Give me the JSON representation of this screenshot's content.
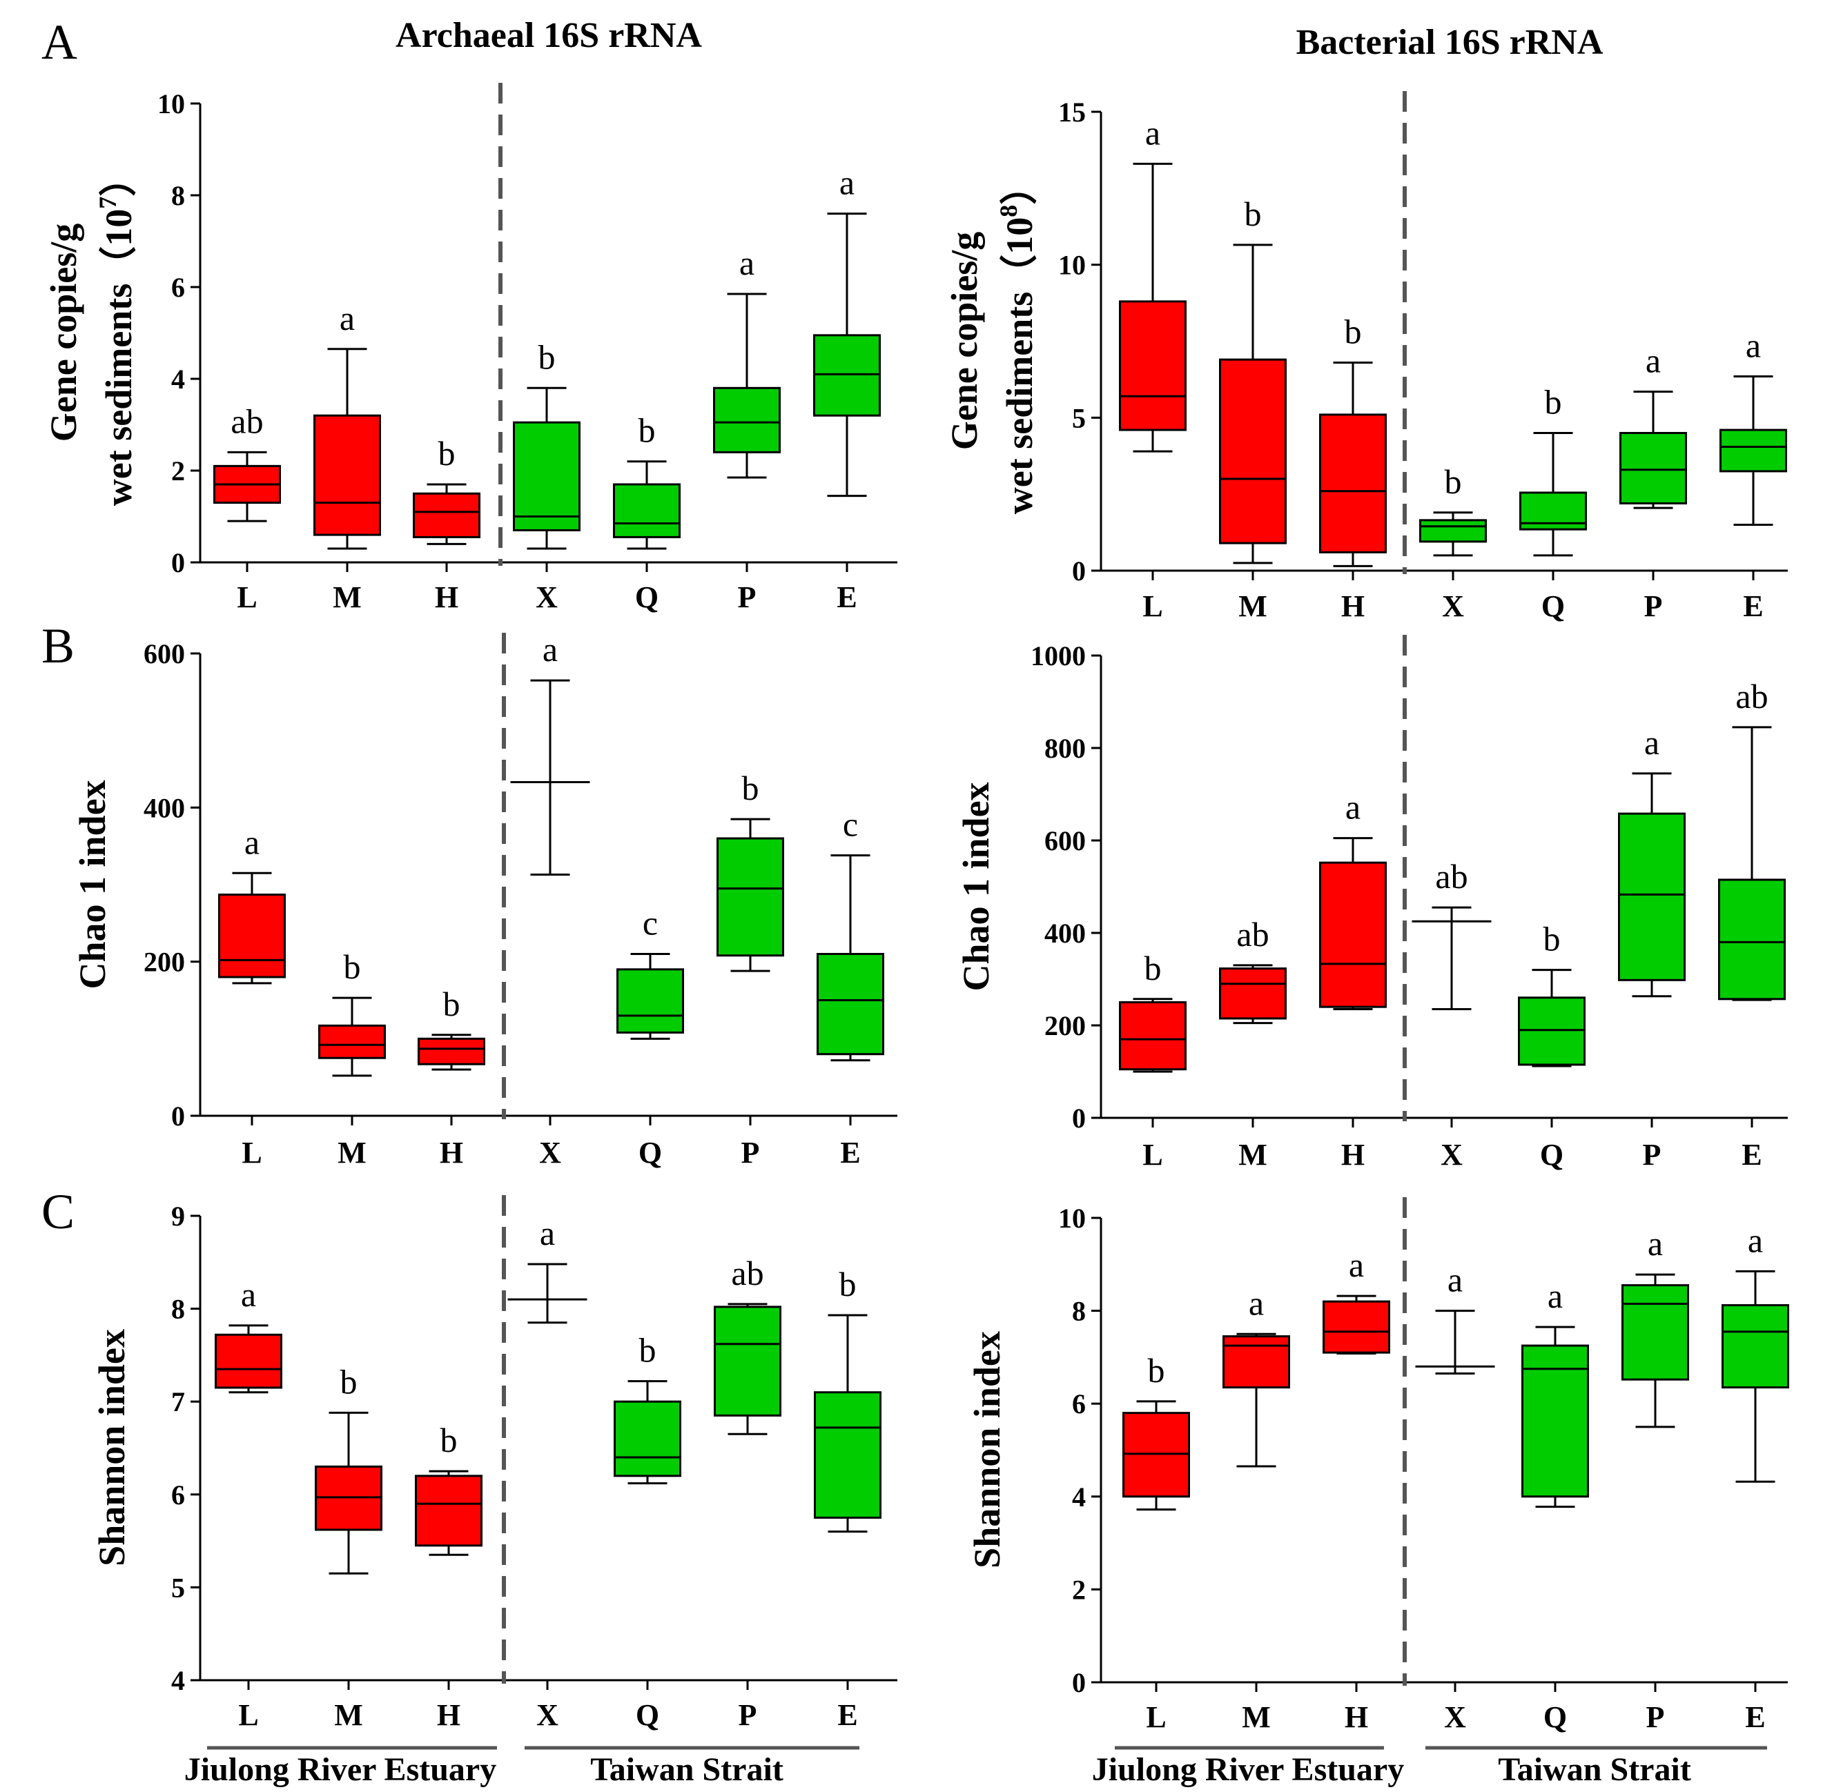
{
  "labels": {
    "A": "A",
    "B": "B",
    "C": "C"
  },
  "column_titles": {
    "archaea": "Archaeal 16S rRNA",
    "bacteria": "Bacterial 16S rRNA"
  },
  "regions": {
    "estuary": "Jiulong River Estuary",
    "strait": "Taiwan Strait"
  },
  "colors": {
    "estuary": "#ff0000",
    "strait": "#00cc00"
  },
  "chart_data": [
    {
      "id": "archaea_copies",
      "type": "boxplot",
      "ylabel_line1": "Gene copies/g",
      "ylabel_line2": "wet sediments（10",
      "ylabel_exp": "7",
      "ylabel_close": "）",
      "ylim": [
        0,
        10
      ],
      "yticks": [
        "0",
        "2",
        "4",
        "6",
        "8",
        "10"
      ],
      "categories": [
        "L",
        "M",
        "H",
        "X",
        "Q",
        "P",
        "E"
      ],
      "boxes": [
        {
          "cat": "L",
          "group": "estuary",
          "min": 0.9,
          "q1": 1.3,
          "median": 1.7,
          "q3": 2.1,
          "max": 2.4,
          "letter": "ab"
        },
        {
          "cat": "M",
          "group": "estuary",
          "min": 0.3,
          "q1": 0.6,
          "median": 1.3,
          "q3": 3.2,
          "max": 4.65,
          "letter": "a"
        },
        {
          "cat": "H",
          "group": "estuary",
          "min": 0.4,
          "q1": 0.55,
          "median": 1.1,
          "q3": 1.5,
          "max": 1.7,
          "letter": "b"
        },
        {
          "cat": "X",
          "group": "strait",
          "min": 0.3,
          "q1": 0.7,
          "median": 1.0,
          "q3": 3.05,
          "max": 3.8,
          "letter": "b"
        },
        {
          "cat": "Q",
          "group": "strait",
          "min": 0.3,
          "q1": 0.55,
          "median": 0.85,
          "q3": 1.7,
          "max": 2.2,
          "letter": "b"
        },
        {
          "cat": "P",
          "group": "strait",
          "min": 1.85,
          "q1": 2.4,
          "median": 3.05,
          "q3": 3.8,
          "max": 5.85,
          "letter": "a"
        },
        {
          "cat": "E",
          "group": "strait",
          "min": 1.45,
          "q1": 3.2,
          "median": 4.1,
          "q3": 4.95,
          "max": 7.6,
          "letter": "a"
        }
      ]
    },
    {
      "id": "bacteria_copies",
      "type": "boxplot",
      "ylabel_line1": "Gene copies/g",
      "ylabel_line2": "wet sediments（10",
      "ylabel_exp": "8",
      "ylabel_close": "）",
      "ylim": [
        0,
        15
      ],
      "yticks": [
        "0",
        "5",
        "10",
        "15"
      ],
      "categories": [
        "L",
        "M",
        "H",
        "X",
        "Q",
        "P",
        "E"
      ],
      "boxes": [
        {
          "cat": "L",
          "group": "estuary",
          "min": 3.9,
          "q1": 4.6,
          "median": 5.7,
          "q3": 8.8,
          "max": 13.3,
          "letter": "a"
        },
        {
          "cat": "M",
          "group": "estuary",
          "min": 0.25,
          "q1": 0.9,
          "median": 3.0,
          "q3": 6.9,
          "max": 10.65,
          "letter": "b"
        },
        {
          "cat": "H",
          "group": "estuary",
          "min": 0.15,
          "q1": 0.6,
          "median": 2.6,
          "q3": 5.1,
          "max": 6.8,
          "letter": "b"
        },
        {
          "cat": "X",
          "group": "strait",
          "min": 0.5,
          "q1": 0.95,
          "median": 1.45,
          "q3": 1.65,
          "max": 1.9,
          "letter": "b"
        },
        {
          "cat": "Q",
          "group": "strait",
          "min": 0.5,
          "q1": 1.35,
          "median": 1.55,
          "q3": 2.55,
          "max": 4.5,
          "letter": "b"
        },
        {
          "cat": "P",
          "group": "strait",
          "min": 2.05,
          "q1": 2.2,
          "median": 3.3,
          "q3": 4.5,
          "max": 5.85,
          "letter": "a"
        },
        {
          "cat": "E",
          "group": "strait",
          "min": 1.5,
          "q1": 3.25,
          "median": 4.05,
          "q3": 4.6,
          "max": 6.35,
          "letter": "a"
        }
      ]
    },
    {
      "id": "archaea_chao1",
      "type": "boxplot",
      "ylabel": "Chao 1 index",
      "ylim": [
        0,
        600
      ],
      "yticks": [
        "0",
        "200",
        "400",
        "600"
      ],
      "categories": [
        "L",
        "M",
        "H",
        "X",
        "Q",
        "P",
        "E"
      ],
      "boxes": [
        {
          "cat": "L",
          "group": "estuary",
          "min": 172,
          "q1": 180,
          "median": 202,
          "q3": 287,
          "max": 315,
          "letter": "a"
        },
        {
          "cat": "M",
          "group": "estuary",
          "min": 52,
          "q1": 75,
          "median": 92,
          "q3": 117,
          "max": 153,
          "letter": "b"
        },
        {
          "cat": "H",
          "group": "estuary",
          "min": 60,
          "q1": 67,
          "median": 87,
          "q3": 100,
          "max": 105,
          "letter": "b"
        },
        {
          "cat": "X",
          "group": "strait",
          "min": 313,
          "median": 433,
          "max": 565,
          "nobox": true,
          "letter": "a"
        },
        {
          "cat": "Q",
          "group": "strait",
          "min": 100,
          "q1": 108,
          "median": 130,
          "q3": 190,
          "max": 210,
          "letter": "c"
        },
        {
          "cat": "P",
          "group": "strait",
          "min": 188,
          "q1": 208,
          "median": 295,
          "q3": 360,
          "max": 385,
          "letter": "b"
        },
        {
          "cat": "E",
          "group": "strait",
          "min": 72,
          "q1": 80,
          "median": 150,
          "q3": 210,
          "max": 338,
          "letter": "c"
        }
      ]
    },
    {
      "id": "bacteria_chao1",
      "type": "boxplot",
      "ylabel": "Chao 1 index",
      "ylim": [
        0,
        1000
      ],
      "yticks": [
        "0",
        "200",
        "400",
        "600",
        "800",
        "1000"
      ],
      "categories": [
        "L",
        "M",
        "H",
        "X",
        "Q",
        "P",
        "E"
      ],
      "boxes": [
        {
          "cat": "L",
          "group": "estuary",
          "min": 100,
          "q1": 105,
          "median": 170,
          "q3": 250,
          "max": 257,
          "letter": "b"
        },
        {
          "cat": "M",
          "group": "estuary",
          "min": 205,
          "q1": 215,
          "median": 290,
          "q3": 323,
          "max": 330,
          "letter": "ab"
        },
        {
          "cat": "H",
          "group": "estuary",
          "min": 235,
          "q1": 240,
          "median": 333,
          "q3": 552,
          "max": 605,
          "letter": "a"
        },
        {
          "cat": "X",
          "group": "strait",
          "min": 235,
          "median": 425,
          "max": 455,
          "nobox": true,
          "letter": "ab"
        },
        {
          "cat": "Q",
          "group": "strait",
          "min": 112,
          "q1": 115,
          "median": 190,
          "q3": 260,
          "max": 320,
          "letter": "b"
        },
        {
          "cat": "P",
          "group": "strait",
          "min": 263,
          "q1": 298,
          "median": 483,
          "q3": 658,
          "max": 745,
          "letter": "a"
        },
        {
          "cat": "E",
          "group": "strait",
          "min": 255,
          "q1": 257,
          "median": 380,
          "q3": 515,
          "max": 845,
          "letter": "ab"
        }
      ]
    },
    {
      "id": "archaea_shannon",
      "type": "boxplot",
      "ylabel": "Shannon index",
      "ylim": [
        4,
        9
      ],
      "yticks": [
        "4",
        "5",
        "6",
        "7",
        "8",
        "9"
      ],
      "categories": [
        "L",
        "M",
        "H",
        "X",
        "Q",
        "P",
        "E"
      ],
      "boxes": [
        {
          "cat": "L",
          "group": "estuary",
          "min": 7.1,
          "q1": 7.15,
          "median": 7.35,
          "q3": 7.72,
          "max": 7.82,
          "letter": "a"
        },
        {
          "cat": "M",
          "group": "estuary",
          "min": 5.15,
          "q1": 5.62,
          "median": 5.97,
          "q3": 6.3,
          "max": 6.88,
          "letter": "b"
        },
        {
          "cat": "H",
          "group": "estuary",
          "min": 5.35,
          "q1": 5.45,
          "median": 5.9,
          "q3": 6.2,
          "max": 6.25,
          "letter": "b"
        },
        {
          "cat": "X",
          "group": "strait",
          "min": 7.85,
          "median": 8.1,
          "max": 8.48,
          "nobox": true,
          "letter": "a"
        },
        {
          "cat": "Q",
          "group": "strait",
          "min": 6.12,
          "q1": 6.2,
          "median": 6.4,
          "q3": 7.0,
          "max": 7.22,
          "letter": "b"
        },
        {
          "cat": "P",
          "group": "strait",
          "min": 6.65,
          "q1": 6.85,
          "median": 7.62,
          "q3": 8.02,
          "max": 8.05,
          "letter": "ab"
        },
        {
          "cat": "E",
          "group": "strait",
          "min": 5.6,
          "q1": 5.75,
          "median": 6.72,
          "q3": 7.1,
          "max": 7.93,
          "letter": "b"
        }
      ]
    },
    {
      "id": "bacteria_shannon",
      "type": "boxplot",
      "ylabel": "Shannon index",
      "ylim": [
        0,
        10
      ],
      "yticks": [
        "0",
        "2",
        "4",
        "6",
        "8",
        "10"
      ],
      "categories": [
        "L",
        "M",
        "H",
        "X",
        "Q",
        "P",
        "E"
      ],
      "boxes": [
        {
          "cat": "L",
          "group": "estuary",
          "min": 3.72,
          "q1": 4.0,
          "median": 4.92,
          "q3": 5.8,
          "max": 6.05,
          "letter": "b"
        },
        {
          "cat": "M",
          "group": "estuary",
          "min": 4.65,
          "q1": 6.35,
          "median": 7.25,
          "q3": 7.45,
          "max": 7.5,
          "letter": "a"
        },
        {
          "cat": "H",
          "group": "estuary",
          "min": 7.08,
          "q1": 7.1,
          "median": 7.55,
          "q3": 8.2,
          "max": 8.32,
          "letter": "a"
        },
        {
          "cat": "X",
          "group": "strait",
          "min": 6.65,
          "median": 6.8,
          "max": 8.0,
          "nobox": true,
          "letter": "a"
        },
        {
          "cat": "Q",
          "group": "strait",
          "min": 3.78,
          "q1": 4.0,
          "median": 6.75,
          "q3": 7.25,
          "max": 7.65,
          "letter": "a"
        },
        {
          "cat": "P",
          "group": "strait",
          "min": 5.5,
          "q1": 6.52,
          "median": 8.15,
          "q3": 8.55,
          "max": 8.78,
          "letter": "a"
        },
        {
          "cat": "E",
          "group": "strait",
          "min": 4.32,
          "q1": 6.35,
          "median": 7.55,
          "q3": 8.12,
          "max": 8.85,
          "letter": "a"
        }
      ]
    }
  ]
}
